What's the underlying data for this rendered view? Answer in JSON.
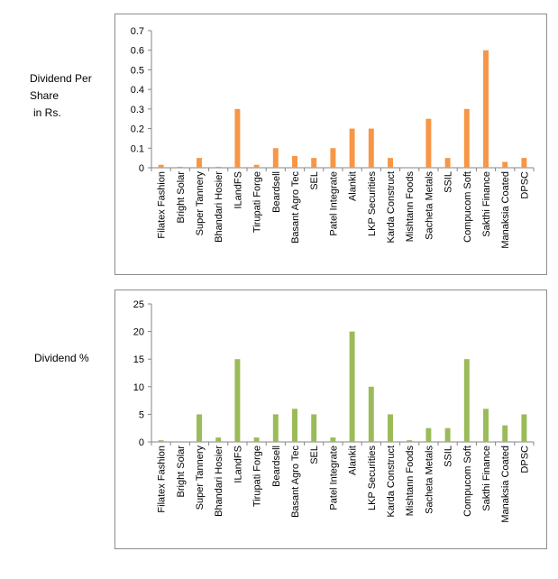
{
  "labels": {
    "top_label_line1": "Dividend Per",
    "top_label_line2": "Share",
    "top_label_line3": "in Rs.",
    "bottom_label": "Dividend %"
  },
  "chart_data": [
    {
      "type": "bar",
      "title": "",
      "ylabel": "Dividend Per Share in Rs.",
      "xlabel": "",
      "color": "#f79646",
      "ylim": [
        0,
        0.7
      ],
      "yticks": [
        "0",
        "0.1",
        "0.2",
        "0.3",
        "0.4",
        "0.5",
        "0.6",
        "0.7"
      ],
      "grid": false,
      "categories": [
        "Filatex Fashion",
        "Bright Solar",
        "Super Tannery",
        "Bhandari Hosier",
        "ILandFS",
        "Tirupati Forge",
        "Beardsell",
        "Basant Agro Tec",
        "SEL",
        "Patel Integrate",
        "Alankit",
        "LKP Securities",
        "Karda Construct",
        "Mishtann Foods",
        "Sacheta Metals",
        "SSIL",
        "Compucom Soft",
        "Sakthi Finance",
        "Manaksia Coated",
        "DPSC"
      ],
      "values": [
        0.015,
        0.005,
        0.05,
        0.005,
        0.3,
        0.015,
        0.1,
        0.06,
        0.05,
        0.1,
        0.2,
        0.2,
        0.05,
        0,
        0.25,
        0.05,
        0.3,
        0.6,
        0.03,
        0.05
      ]
    },
    {
      "type": "bar",
      "title": "",
      "ylabel": "Dividend %",
      "xlabel": "",
      "color": "#9bbb59",
      "ylim": [
        0,
        25
      ],
      "yticks": [
        "0",
        "5",
        "10",
        "15",
        "20",
        "25"
      ],
      "grid": false,
      "categories": [
        "Filatex Fashion",
        "Bright Solar",
        "Super Tannery",
        "Bhandari Hosier",
        "ILandFS",
        "Tirupati Forge",
        "Beardsell",
        "Basant Agro Tec",
        "SEL",
        "Patel Integrate",
        "Alankit",
        "LKP Securities",
        "Karda Construct",
        "Mishtann Foods",
        "Sacheta Metals",
        "SSIL",
        "Compucom Soft",
        "Sakthi Finance",
        "Manaksia Coated",
        "DPSC"
      ],
      "values": [
        0.3,
        0,
        5,
        0.8,
        15,
        0.8,
        5,
        6,
        5,
        0.8,
        20,
        10,
        5,
        0.3,
        2.5,
        2.5,
        15,
        6,
        3,
        5
      ]
    }
  ]
}
